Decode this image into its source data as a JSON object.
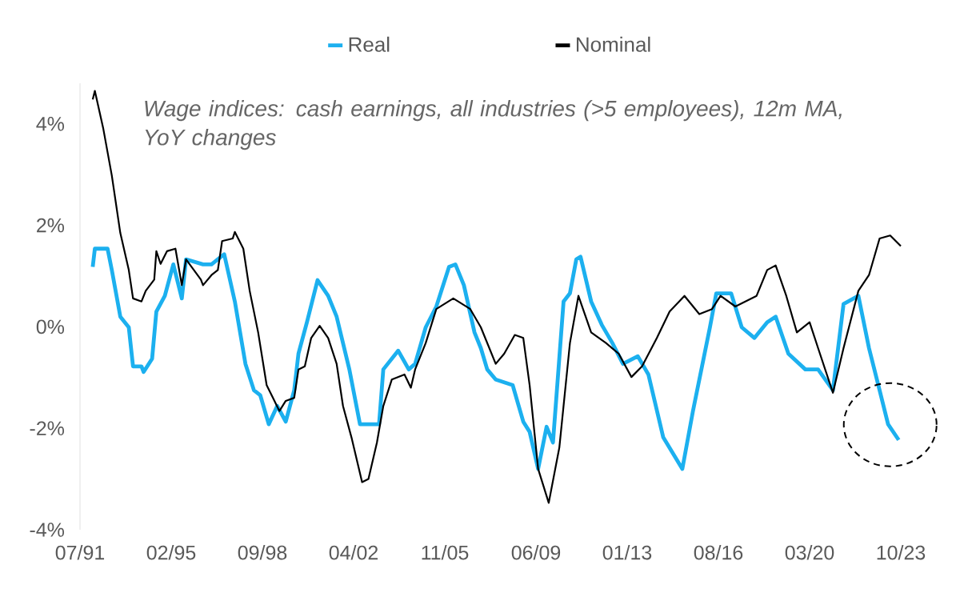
{
  "chart_data": {
    "type": "line",
    "legend": "top",
    "annotations": [
      "Wage indices: cash earnings, all industries (>5 employees), 12m MA, YoY changes"
    ],
    "xlim": [
      "1991-07",
      "2023-10"
    ],
    "xticks": [
      {
        "value": "1991-07",
        "label": "07/91"
      },
      {
        "value": "1995-02",
        "label": "02/95"
      },
      {
        "value": "1998-09",
        "label": "09/98"
      },
      {
        "value": "2002-04",
        "label": "04/02"
      },
      {
        "value": "2005-11",
        "label": "11/05"
      },
      {
        "value": "2009-06",
        "label": "06/09"
      },
      {
        "value": "2013-01",
        "label": "01/13"
      },
      {
        "value": "2016-08",
        "label": "08/16"
      },
      {
        "value": "2020-03",
        "label": "03/20"
      },
      {
        "value": "2023-10",
        "label": "10/23"
      }
    ],
    "ylim": [
      -4,
      4.8
    ],
    "yticks": [
      {
        "value": -4,
        "label": "-4%"
      },
      {
        "value": -2,
        "label": "-2%"
      },
      {
        "value": 0,
        "label": "0%"
      },
      {
        "value": 2,
        "label": "2%"
      },
      {
        "value": 4,
        "label": "4%"
      }
    ],
    "series": [
      {
        "name": "Real",
        "color": "#1cb0ef",
        "x": [
          "1992-01",
          "1992-02",
          "1992-08",
          "1992-10",
          "1993-02",
          "1993-06",
          "1993-08",
          "1993-12",
          "1994-01",
          "1994-05",
          "1994-07",
          "1994-11",
          "1995-03",
          "1995-07",
          "1995-09",
          "1996-05",
          "1996-09",
          "1997-03",
          "1997-08",
          "1998-01",
          "1998-05",
          "1998-08",
          "1998-12",
          "1999-04",
          "1999-08",
          "1999-12",
          "2000-02",
          "2000-06",
          "2000-11",
          "2001-04",
          "2001-08",
          "2002-02",
          "2002-07",
          "2002-12",
          "2003-04",
          "2003-06",
          "2004-01",
          "2004-06",
          "2004-09",
          "2005-02",
          "2005-07",
          "2006-01",
          "2006-04",
          "2006-08",
          "2007-01",
          "2007-04",
          "2007-07",
          "2007-11",
          "2008-07",
          "2008-12",
          "2009-03",
          "2009-07",
          "2009-11",
          "2010-02",
          "2010-07",
          "2010-10",
          "2011-01",
          "2011-03",
          "2011-08",
          "2012-01",
          "2012-06",
          "2012-11",
          "2013-06",
          "2013-11",
          "2014-06",
          "2015-03",
          "2015-08",
          "2016-04",
          "2016-07",
          "2017-02",
          "2017-07",
          "2018-01",
          "2018-07",
          "2018-11",
          "2019-05",
          "2020-01",
          "2020-07",
          "2021-02",
          "2021-07",
          "2022-02",
          "2022-07",
          "2022-12",
          "2023-04",
          "2023-09"
        ],
        "values": [
          1.18,
          1.54,
          1.54,
          1.12,
          0.2,
          -0.01,
          -0.78,
          -0.78,
          -0.89,
          -0.63,
          0.3,
          0.61,
          1.23,
          0.56,
          1.33,
          1.23,
          1.23,
          1.43,
          0.5,
          -0.73,
          -1.25,
          -1.35,
          -1.92,
          -1.56,
          -1.87,
          -1.25,
          -0.53,
          0.09,
          0.92,
          0.61,
          0.2,
          -0.84,
          -1.92,
          -1.92,
          -1.92,
          -0.84,
          -0.47,
          -0.84,
          -0.73,
          -0.01,
          0.4,
          1.18,
          1.23,
          0.82,
          -0.11,
          -0.42,
          -0.84,
          -1.04,
          -1.15,
          -1.87,
          -2.07,
          -2.8,
          -1.97,
          -2.28,
          0.5,
          0.66,
          1.33,
          1.38,
          0.5,
          0.04,
          -0.32,
          -0.73,
          -0.58,
          -0.94,
          -2.18,
          -2.8,
          -1.66,
          -0.01,
          0.66,
          0.66,
          -0.01,
          -0.22,
          0.09,
          0.2,
          -0.53,
          -0.84,
          -0.84,
          -1.25,
          0.45,
          0.61,
          -0.42,
          -1.25,
          -1.92,
          -2.23
        ]
      },
      {
        "name": "Nominal",
        "color": "#000000",
        "x": [
          "1992-01",
          "1992-02",
          "1992-06",
          "1992-10",
          "1993-02",
          "1993-06",
          "1993-08",
          "1993-12",
          "1994-02",
          "1994-06",
          "1994-07",
          "1994-09",
          "1994-12",
          "1995-04",
          "1995-07",
          "1995-09",
          "1996-04",
          "1996-05",
          "1996-09",
          "1996-12",
          "1997-02",
          "1997-07",
          "1997-08",
          "1997-12",
          "1998-03",
          "1998-07",
          "1998-11",
          "1999-02",
          "1999-05",
          "1999-08",
          "1999-12",
          "2000-02",
          "2000-05",
          "2000-08",
          "2000-12",
          "2001-04",
          "2001-08",
          "2001-11",
          "2002-03",
          "2002-08",
          "2002-11",
          "2003-03",
          "2003-06",
          "2003-10",
          "2004-04",
          "2004-07",
          "2004-09",
          "2005-02",
          "2005-07",
          "2006-03",
          "2006-11",
          "2007-04",
          "2007-11",
          "2008-03",
          "2008-08",
          "2008-12",
          "2009-03",
          "2009-07",
          "2009-12",
          "2010-05",
          "2010-10",
          "2011-02",
          "2011-08",
          "2012-03",
          "2012-09",
          "2013-03",
          "2013-08",
          "2014-03",
          "2014-09",
          "2015-04",
          "2015-11",
          "2016-05",
          "2016-09",
          "2017-04",
          "2018-02",
          "2018-07",
          "2018-11",
          "2019-04",
          "2019-09",
          "2020-03",
          "2020-07",
          "2021-02",
          "2021-07",
          "2022-02",
          "2022-07",
          "2022-12",
          "2023-05",
          "2023-10"
        ],
        "values": [
          4.48,
          4.65,
          3.9,
          2.98,
          1.85,
          1.12,
          0.56,
          0.5,
          0.71,
          0.93,
          1.49,
          1.24,
          1.49,
          1.54,
          0.82,
          1.33,
          0.93,
          0.82,
          1.02,
          1.12,
          1.69,
          1.74,
          1.87,
          1.54,
          0.71,
          -0.11,
          -1.15,
          -1.4,
          -1.66,
          -1.46,
          -1.4,
          -0.84,
          -0.78,
          -0.22,
          0.02,
          -0.22,
          -0.73,
          -1.56,
          -2.18,
          -3.06,
          -3.0,
          -2.28,
          -1.56,
          -1.04,
          -0.94,
          -1.2,
          -0.84,
          -0.32,
          0.35,
          0.56,
          0.35,
          -0.01,
          -0.73,
          -0.53,
          -0.16,
          -0.22,
          -1.15,
          -2.8,
          -3.47,
          -2.38,
          -0.32,
          0.61,
          -0.11,
          -0.32,
          -0.53,
          -0.99,
          -0.78,
          -0.22,
          0.3,
          0.61,
          0.25,
          0.35,
          0.61,
          0.4,
          0.61,
          1.12,
          1.21,
          0.61,
          -0.11,
          0.09,
          -0.42,
          -1.3,
          -0.42,
          0.71,
          1.02,
          1.74,
          1.8,
          1.59
        ]
      }
    ]
  }
}
